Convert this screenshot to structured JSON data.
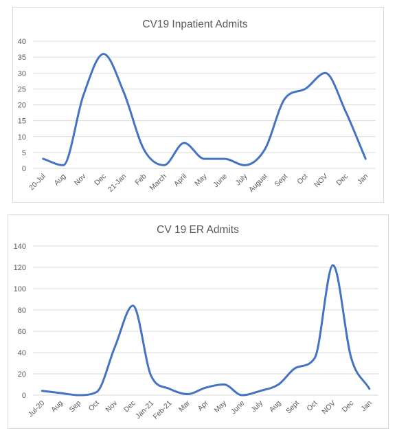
{
  "chart_data": [
    {
      "type": "line",
      "title": "CV19 Inpatient Admits",
      "xlabel": "",
      "ylabel": "",
      "ylim": [
        0,
        40
      ],
      "yticks": [
        0,
        5,
        10,
        15,
        20,
        25,
        30,
        35,
        40
      ],
      "grid": true,
      "legend": "none",
      "categories": [
        "20-Jul",
        "Aug",
        "Nov",
        "Dec",
        "21-Jan",
        "Feb",
        "March",
        "April",
        "May",
        "June",
        "July",
        "August",
        "Sept",
        "Oct",
        "NOV",
        "Dec",
        "Jan"
      ],
      "series": [
        {
          "values": [
            3,
            1,
            23,
            36,
            24,
            6,
            1,
            8,
            3,
            3,
            1,
            6,
            22,
            25,
            30,
            18,
            3
          ]
        }
      ],
      "line_color": "#4472c4"
    },
    {
      "type": "line",
      "title": "CV 19 ER Admits",
      "xlabel": "",
      "ylabel": "",
      "ylim": [
        0,
        140
      ],
      "yticks": [
        0,
        20,
        40,
        60,
        80,
        100,
        120,
        140
      ],
      "grid": true,
      "legend": "none",
      "categories": [
        "Jul-20",
        "Aug",
        "Sep",
        "Oct",
        "Nov",
        "Dec",
        "Jan-21",
        "Feb-21",
        "Mar",
        "Apr",
        "May",
        "June",
        "July",
        "Aug",
        "Sept",
        "Oct",
        "NOV",
        "Dec",
        "Jan"
      ],
      "series": [
        {
          "values": [
            4,
            2,
            0,
            3,
            45,
            84,
            18,
            6,
            1,
            7,
            10,
            0,
            4,
            10,
            26,
            35,
            122,
            35,
            6
          ]
        }
      ],
      "line_color": "#4472c4"
    }
  ]
}
